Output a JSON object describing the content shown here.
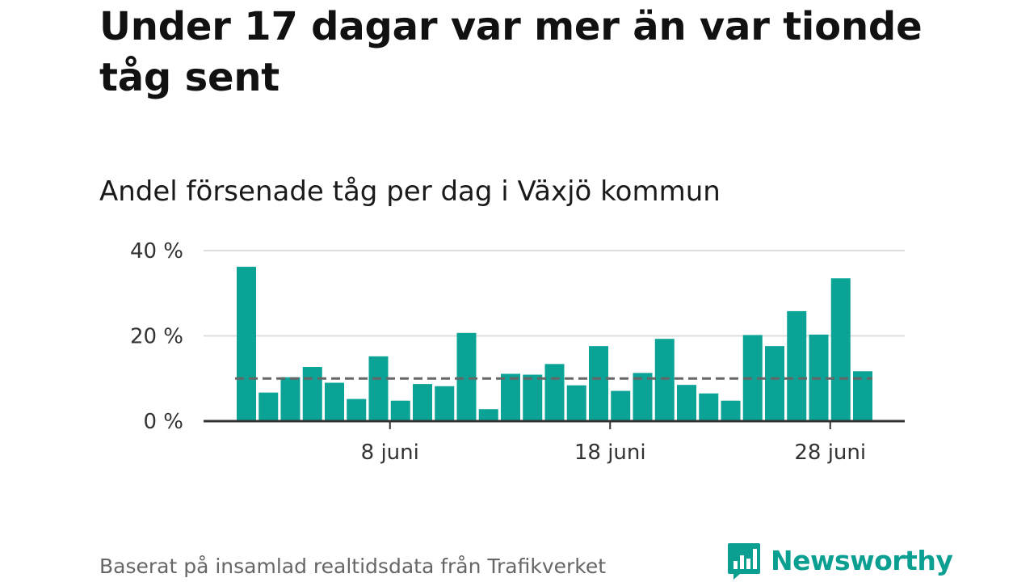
{
  "headline": "Under 17 dagar var mer än var tionde tåg sent",
  "subtitle": "Andel försenade tåg per dag i Växjö kommun",
  "footer": {
    "source": "Baserat på insamlad realtidsdata från Trafikverket",
    "brand": "Newsworthy"
  },
  "colors": {
    "bar": "#0aa396",
    "brand": "#0b9f92",
    "reference_line": "#666666",
    "grid": "#dddddd",
    "axis": "#333333"
  },
  "icons": {
    "brand_logo": "newsworthy-logo-icon"
  },
  "chart_data": {
    "type": "bar",
    "x": [
      "2024-06-01",
      "2024-06-02",
      "2024-06-03",
      "2024-06-04",
      "2024-06-05",
      "2024-06-06",
      "2024-06-07",
      "2024-06-08",
      "2024-06-09",
      "2024-06-10",
      "2024-06-11",
      "2024-06-12",
      "2024-06-13",
      "2024-06-14",
      "2024-06-15",
      "2024-06-16",
      "2024-06-17",
      "2024-06-18",
      "2024-06-19",
      "2024-06-20",
      "2024-06-21",
      "2024-06-22",
      "2024-06-23",
      "2024-06-24",
      "2024-06-25",
      "2024-06-26",
      "2024-06-27",
      "2024-06-28",
      "2024-06-29"
    ],
    "values": [
      36.2,
      6.7,
      10.3,
      12.7,
      9.0,
      5.2,
      15.2,
      4.8,
      8.7,
      8.2,
      20.7,
      2.8,
      11.1,
      10.9,
      13.4,
      8.4,
      17.6,
      7.1,
      11.3,
      19.3,
      8.5,
      6.5,
      4.8,
      20.2,
      17.6,
      25.8,
      20.3,
      33.5,
      11.7
    ],
    "reference_line": 10,
    "ylim": [
      0,
      40
    ],
    "yticks": [
      {
        "value": 0,
        "label": "0 %"
      },
      {
        "value": 20,
        "label": "20 %"
      },
      {
        "value": 40,
        "label": "40 %"
      }
    ],
    "xticks": [
      {
        "x": "2024-06-08",
        "label": "8 juni"
      },
      {
        "x": "2024-06-18",
        "label": "18 juni"
      },
      {
        "x": "2024-06-28",
        "label": "28 juni"
      }
    ],
    "grid": true,
    "legend": "none"
  }
}
